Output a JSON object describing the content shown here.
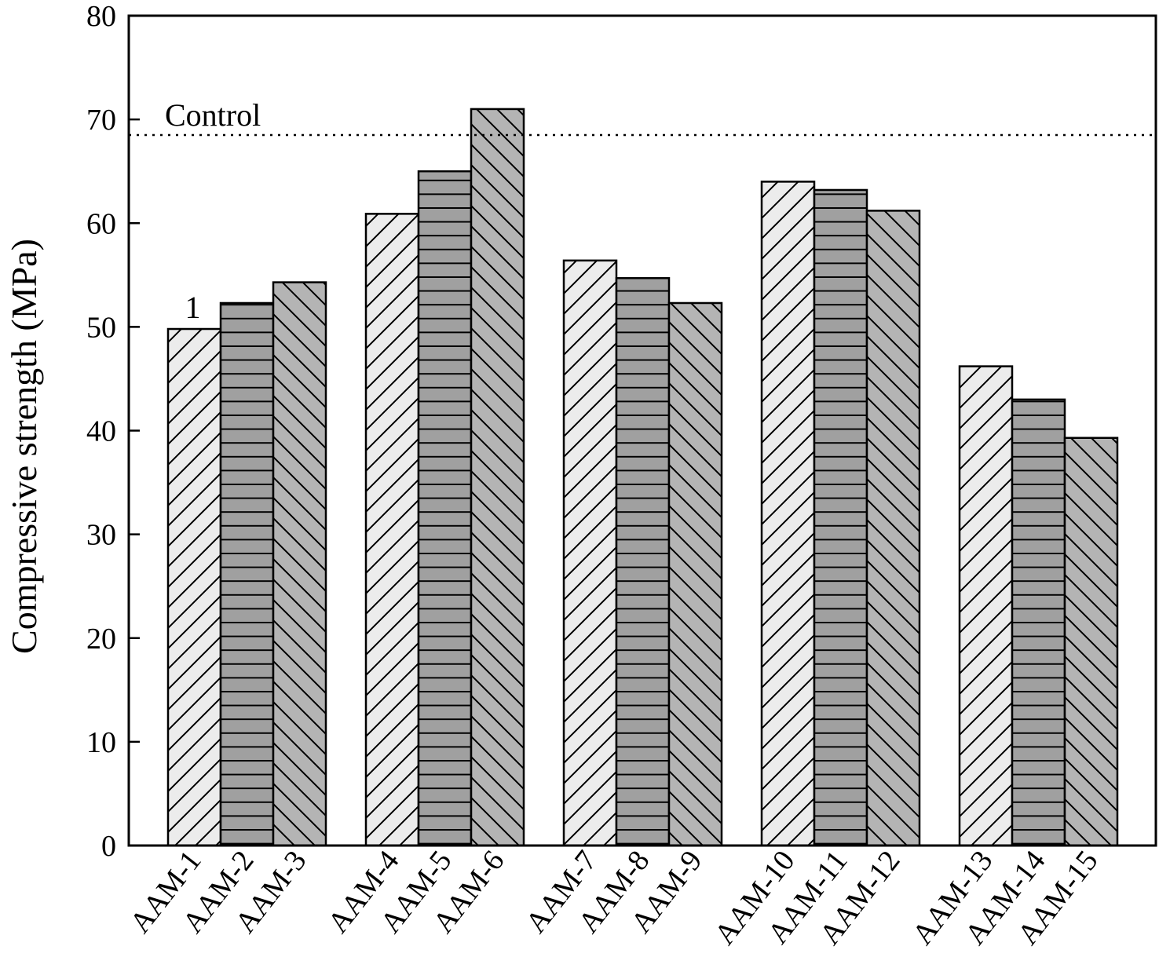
{
  "chart_data": {
    "type": "bar",
    "title": "",
    "xlabel": "",
    "ylabel": "Compressive strength  (MPa)",
    "ylim": [
      0,
      80
    ],
    "yticks": [
      0,
      10,
      20,
      30,
      40,
      50,
      60,
      70,
      80
    ],
    "grid": false,
    "categories": [
      "AAM-1",
      "AAM-2",
      "AAM-3",
      "AAM-4",
      "AAM-5",
      "AAM-6",
      "AAM-7",
      "AAM-8",
      "AAM-9",
      "AAM-10",
      "AAM-11",
      "AAM-12",
      "AAM-13",
      "AAM-14",
      "AAM-15"
    ],
    "groups": [
      [
        "AAM-1",
        "AAM-2",
        "AAM-3"
      ],
      [
        "AAM-4",
        "AAM-5",
        "AAM-6"
      ],
      [
        "AAM-7",
        "AAM-8",
        "AAM-9"
      ],
      [
        "AAM-10",
        "AAM-11",
        "AAM-12"
      ],
      [
        "AAM-13",
        "AAM-14",
        "AAM-15"
      ]
    ],
    "values": [
      49.8,
      52.3,
      54.3,
      60.9,
      65.0,
      71.0,
      56.4,
      54.7,
      52.3,
      64.0,
      63.2,
      61.2,
      46.2,
      43.0,
      39.3
    ],
    "pattern_cycle": [
      "forward-diagonal-light",
      "horizontal-medium",
      "backward-diagonal-dark"
    ],
    "colors": {
      "light": "#ececec",
      "medium": "#a0a0a0",
      "dark": "#b4b4b4"
    },
    "reference_line": {
      "label": "Control",
      "value": 68.5,
      "style": "dotted"
    },
    "annotations": [
      {
        "text": "1",
        "category": "AAM-1"
      }
    ]
  }
}
